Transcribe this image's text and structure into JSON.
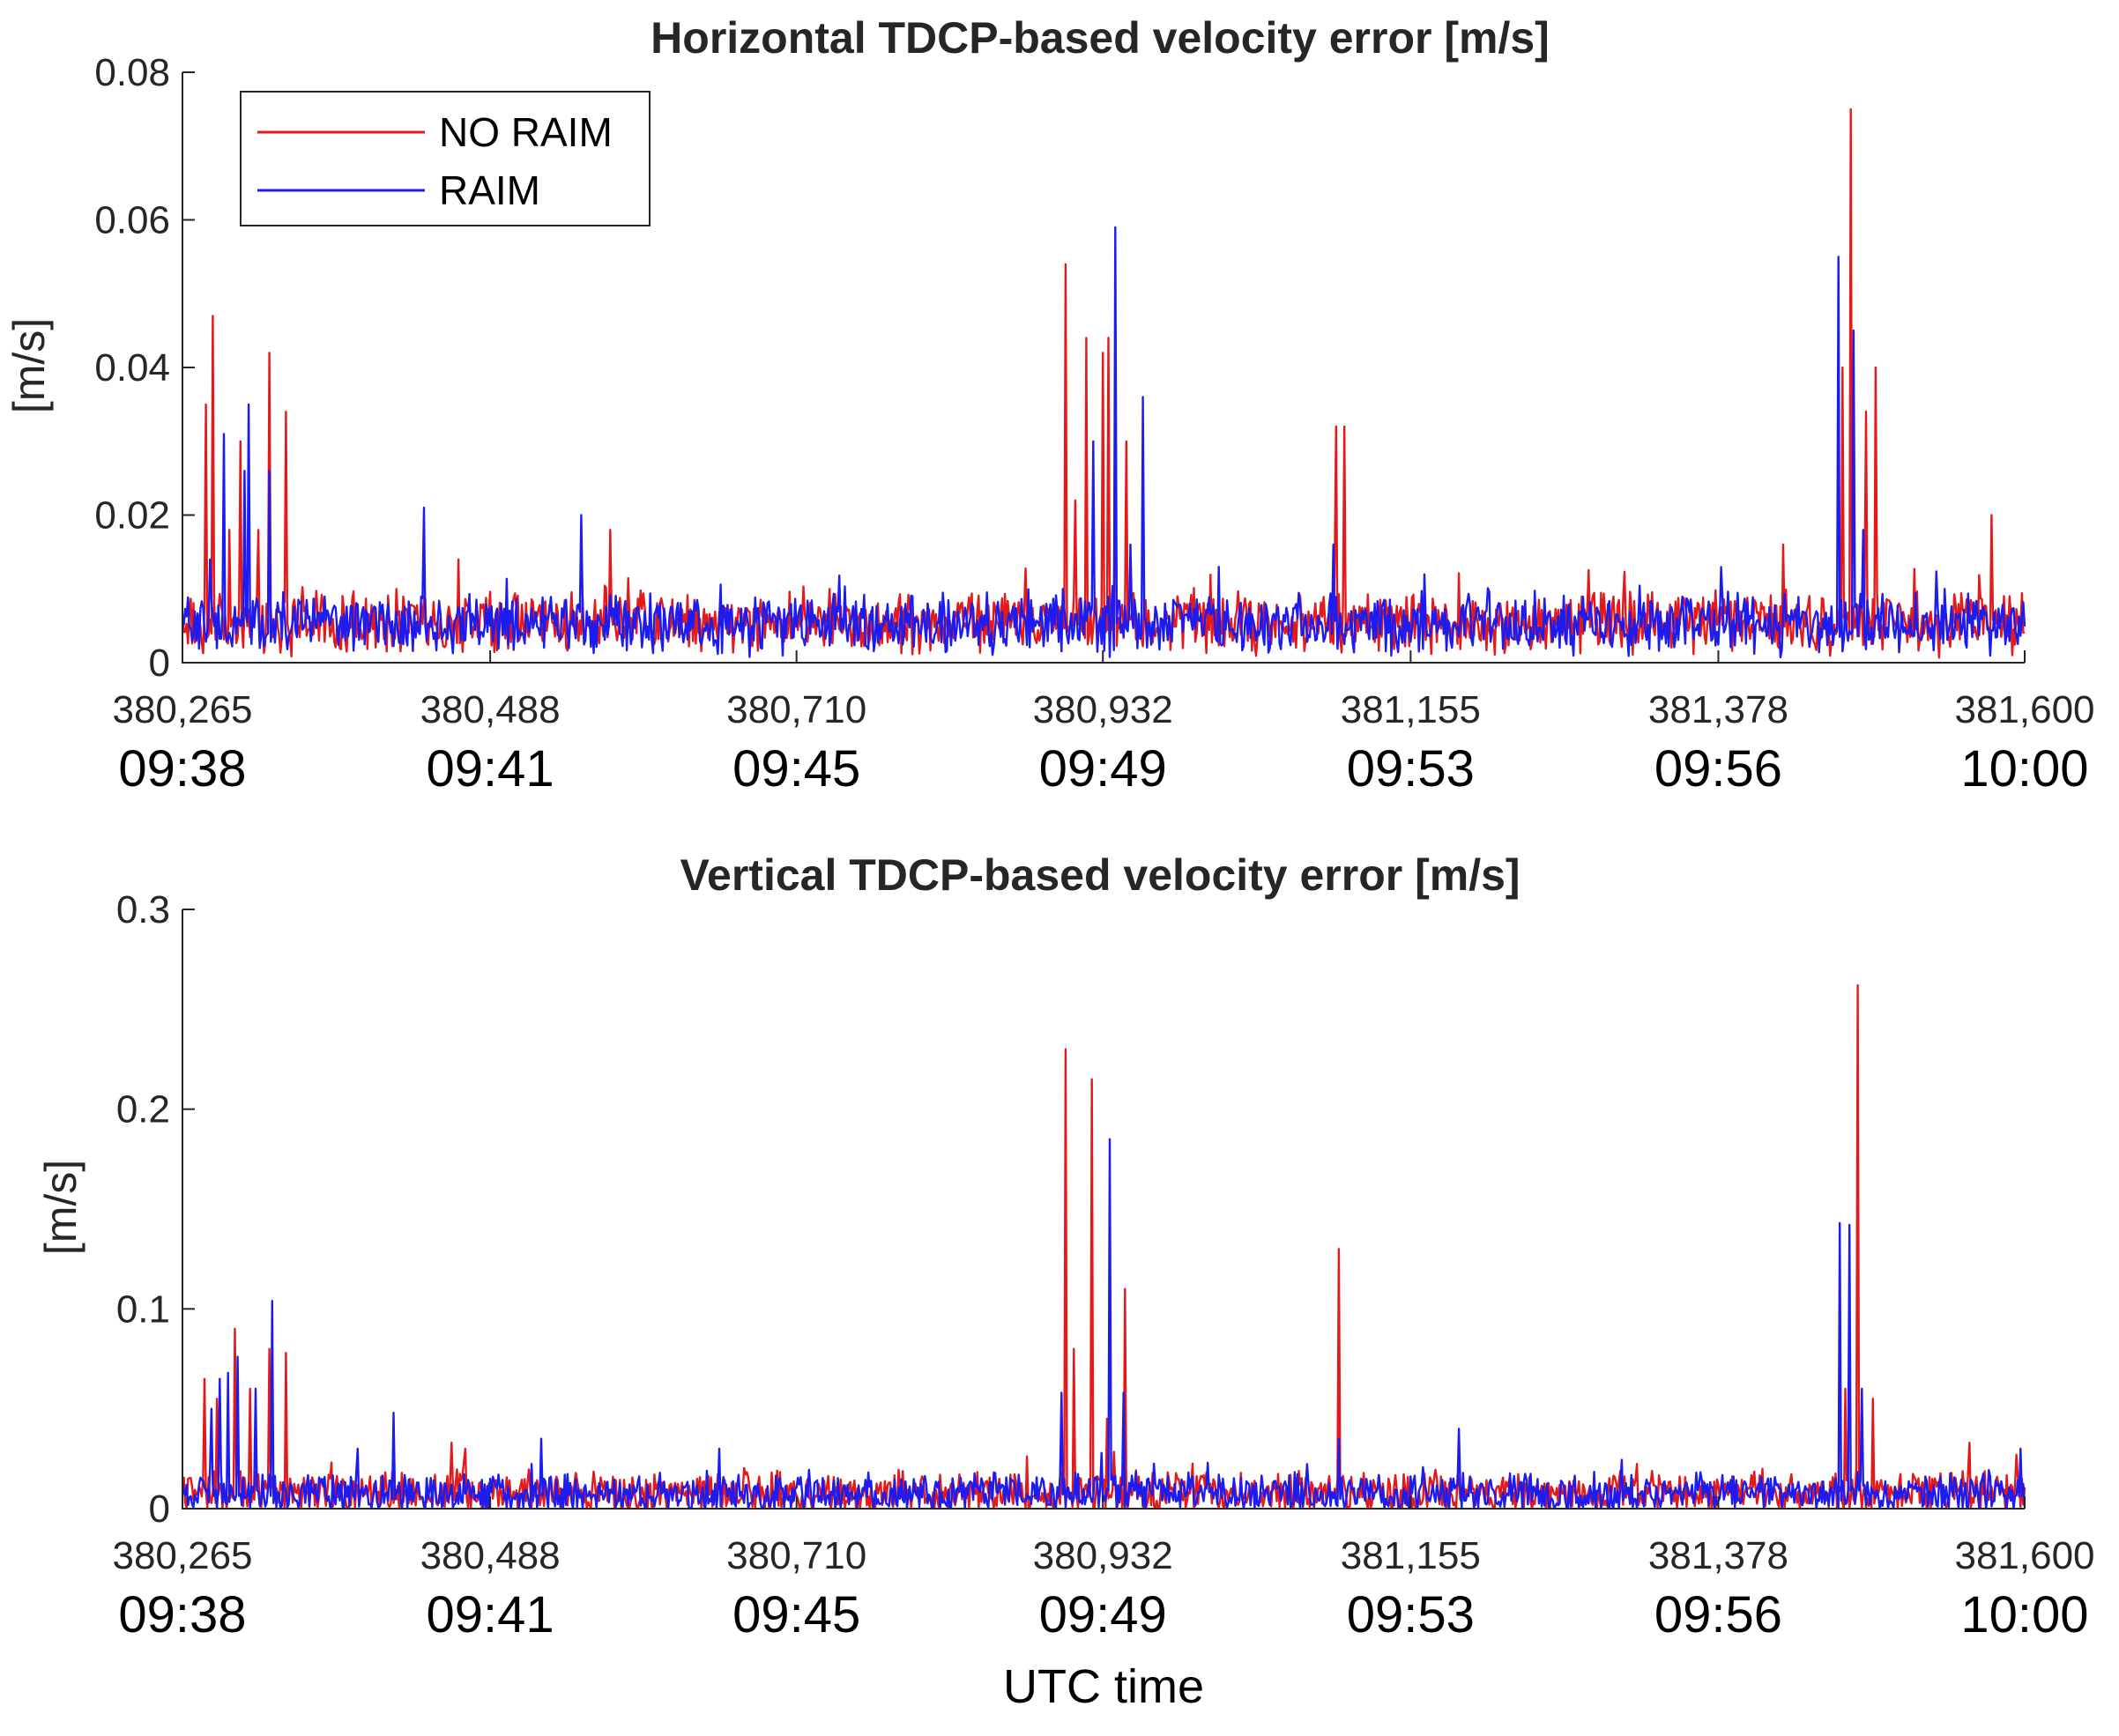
{
  "colors": {
    "no_raim": "#e31a1c",
    "raim": "#1c1cf0",
    "axis": "#262626"
  },
  "xlabel": "UTC time",
  "chart_data": [
    {
      "type": "line",
      "title": "Horizontal TDCP-based velocity error [m/s]",
      "ylabel": "[m/s]",
      "xlabel": "",
      "xlim": [
        380265,
        381600
      ],
      "ylim": [
        0,
        0.08
      ],
      "yticks": [
        "0",
        "0.02",
        "0.04",
        "0.06",
        "0.08"
      ],
      "ytick_values": [
        0,
        0.02,
        0.04,
        0.06,
        0.08
      ],
      "xticks": [
        380265,
        380488,
        380710,
        380932,
        381155,
        381378,
        381600
      ],
      "xtick_labels": [
        "380,265",
        "380,488",
        "380,710",
        "380,932",
        "381,155",
        "381,378",
        "381,600"
      ],
      "xtick_times": [
        "09:38",
        "09:41",
        "09:45",
        "09:49",
        "09:53",
        "09:56",
        "10:00"
      ],
      "legend": {
        "placement": "top-left",
        "entries": [
          "NO RAIM",
          "RAIM"
        ]
      },
      "series": [
        {
          "name": "NO RAIM",
          "base": 0.0055,
          "noise": 0.0035,
          "peaks": [
            [
              380282,
              0.035
            ],
            [
              380287,
              0.047
            ],
            [
              380299,
              0.018
            ],
            [
              380307,
              0.03
            ],
            [
              380320,
              0.018
            ],
            [
              380328,
              0.042
            ],
            [
              380340,
              0.034
            ],
            [
              380420,
              0.01
            ],
            [
              380465,
              0.014
            ],
            [
              380575,
              0.018
            ],
            [
              380905,
              0.054
            ],
            [
              380912,
              0.022
            ],
            [
              380920,
              0.044
            ],
            [
              380932,
              0.042
            ],
            [
              380936,
              0.044
            ],
            [
              380941,
              0.043
            ],
            [
              380949,
              0.03
            ],
            [
              381101,
              0.032
            ],
            [
              381107,
              0.032
            ],
            [
              381425,
              0.016
            ],
            [
              381468,
              0.04
            ],
            [
              381474,
              0.075
            ],
            [
              381485,
              0.034
            ],
            [
              381492,
              0.04
            ],
            [
              381576,
              0.02
            ]
          ]
        },
        {
          "name": "RAIM",
          "base": 0.0052,
          "noise": 0.0033,
          "peaks": [
            [
              380285,
              0.014
            ],
            [
              380295,
              0.031
            ],
            [
              380310,
              0.026
            ],
            [
              380313,
              0.035
            ],
            [
              380328,
              0.026
            ],
            [
              380350,
              0.008
            ],
            [
              380440,
              0.021
            ],
            [
              380554,
              0.02
            ],
            [
              380903,
              0.01
            ],
            [
              380925,
              0.03
            ],
            [
              380941,
              0.059
            ],
            [
              380952,
              0.016
            ],
            [
              380961,
              0.036
            ],
            [
              381099,
              0.016
            ],
            [
              381465,
              0.055
            ],
            [
              381476,
              0.045
            ],
            [
              381483,
              0.018
            ]
          ]
        }
      ]
    },
    {
      "type": "line",
      "title": "Vertical TDCP-based velocity error [m/s]",
      "ylabel": "[m/s]",
      "xlabel": "UTC time",
      "xlim": [
        380265,
        381600
      ],
      "ylim": [
        0,
        0.3
      ],
      "yticks": [
        "0",
        "0.1",
        "0.2",
        "0.3"
      ],
      "ytick_values": [
        0,
        0.1,
        0.2,
        0.3
      ],
      "xticks": [
        380265,
        380488,
        380710,
        380932,
        381155,
        381378,
        381600
      ],
      "xtick_labels": [
        "380,265",
        "380,488",
        "380,710",
        "380,932",
        "381,155",
        "381,378",
        "381,600"
      ],
      "xtick_times": [
        "09:38",
        "09:41",
        "09:45",
        "09:49",
        "09:53",
        "09:56",
        "10:00"
      ],
      "series": [
        {
          "name": "NO RAIM",
          "base": 0.008,
          "noise": 0.009,
          "peaks": [
            [
              380281,
              0.065
            ],
            [
              380290,
              0.055
            ],
            [
              380303,
              0.09
            ],
            [
              380314,
              0.06
            ],
            [
              380328,
              0.08
            ],
            [
              380340,
              0.078
            ],
            [
              380460,
              0.033
            ],
            [
              380470,
              0.03
            ],
            [
              380905,
              0.23
            ],
            [
              380911,
              0.08
            ],
            [
              380924,
              0.215
            ],
            [
              380935,
              0.045
            ],
            [
              380948,
              0.11
            ],
            [
              381103,
              0.13
            ],
            [
              381410,
              0.02
            ],
            [
              381470,
              0.06
            ],
            [
              381479,
              0.262
            ],
            [
              381490,
              0.055
            ],
            [
              381560,
              0.033
            ]
          ]
        },
        {
          "name": "RAIM",
          "base": 0.0075,
          "noise": 0.0085,
          "peaks": [
            [
              380286,
              0.05
            ],
            [
              380292,
              0.065
            ],
            [
              380298,
              0.068
            ],
            [
              380305,
              0.076
            ],
            [
              380318,
              0.06
            ],
            [
              380330,
              0.104
            ],
            [
              380392,
              0.03
            ],
            [
              380418,
              0.048
            ],
            [
              380525,
              0.035
            ],
            [
              380654,
              0.03
            ],
            [
              380902,
              0.058
            ],
            [
              380937,
              0.185
            ],
            [
              380947,
              0.058
            ],
            [
              381103,
              0.035
            ],
            [
              381190,
              0.04
            ],
            [
              381466,
              0.143
            ],
            [
              381473,
              0.142
            ],
            [
              381482,
              0.06
            ],
            [
              381597,
              0.03
            ]
          ]
        }
      ]
    }
  ]
}
